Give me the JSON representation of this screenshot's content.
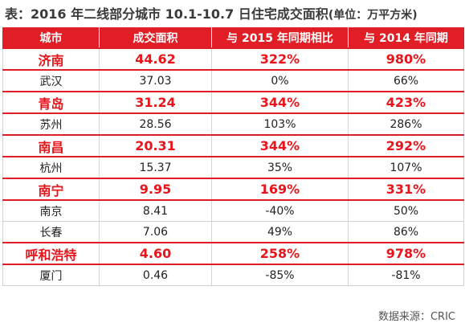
{
  "title": "表：2016 年二线部分城市 10.1-10.7 日住宅成交面积",
  "title_unit": "(单位：万平方米)",
  "colors": {
    "header_bg": "#e11e25",
    "highlight_text": "#e8141b"
  },
  "source": "数据来源：CRIC",
  "chart_data": {
    "type": "table",
    "columns": [
      "城市",
      "成交面积",
      "与 2015 年同期相比",
      "与 2014 年同期"
    ],
    "rows": [
      {
        "city": "济南",
        "area": "44.62",
        "vs2015": "322%",
        "vs2014": "980%",
        "highlight": true
      },
      {
        "city": "武汉",
        "area": "37.03",
        "vs2015": "0%",
        "vs2014": "66%",
        "highlight": false
      },
      {
        "city": "青岛",
        "area": "31.24",
        "vs2015": "344%",
        "vs2014": "423%",
        "highlight": true
      },
      {
        "city": "苏州",
        "area": "28.56",
        "vs2015": "103%",
        "vs2014": "286%",
        "highlight": false
      },
      {
        "city": "南昌",
        "area": "20.31",
        "vs2015": "344%",
        "vs2014": "292%",
        "highlight": true
      },
      {
        "city": "杭州",
        "area": "15.37",
        "vs2015": "35%",
        "vs2014": "107%",
        "highlight": false
      },
      {
        "city": "南宁",
        "area": "9.95",
        "vs2015": "169%",
        "vs2014": "331%",
        "highlight": true
      },
      {
        "city": "南京",
        "area": "8.41",
        "vs2015": "-40%",
        "vs2014": "50%",
        "highlight": false
      },
      {
        "city": "长春",
        "area": "7.06",
        "vs2015": "49%",
        "vs2014": "86%",
        "highlight": false
      },
      {
        "city": "呼和浩特",
        "area": "4.60",
        "vs2015": "258%",
        "vs2014": "978%",
        "highlight": true
      },
      {
        "city": "厦门",
        "area": "0.46",
        "vs2015": "-85%",
        "vs2014": "-81%",
        "highlight": false
      }
    ]
  }
}
